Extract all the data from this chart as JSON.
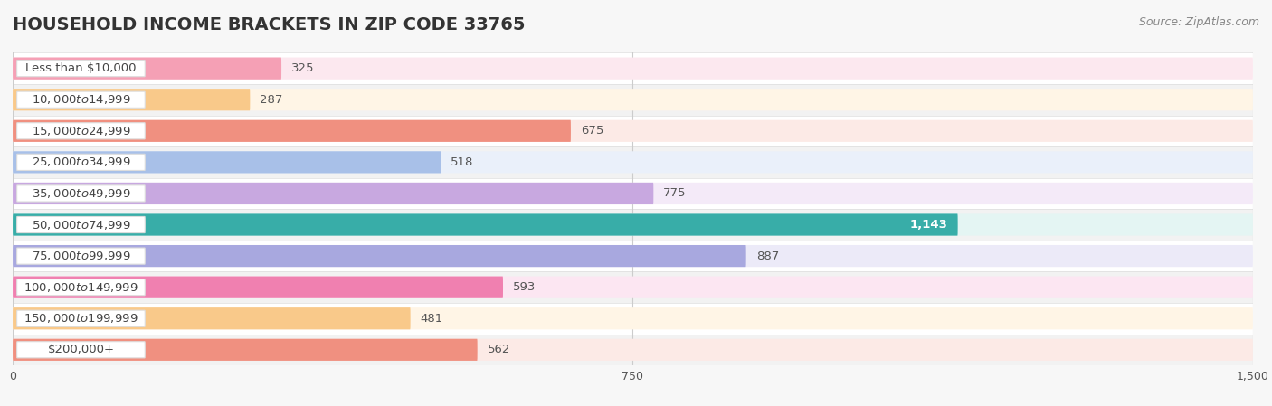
{
  "title": "HOUSEHOLD INCOME BRACKETS IN ZIP CODE 33765",
  "source": "Source: ZipAtlas.com",
  "categories": [
    "Less than $10,000",
    "$10,000 to $14,999",
    "$15,000 to $24,999",
    "$25,000 to $34,999",
    "$35,000 to $49,999",
    "$50,000 to $74,999",
    "$75,000 to $99,999",
    "$100,000 to $149,999",
    "$150,000 to $199,999",
    "$200,000+"
  ],
  "values": [
    325,
    287,
    675,
    518,
    775,
    1143,
    887,
    593,
    481,
    562
  ],
  "bar_colors": [
    "#F5A0B5",
    "#F9C98A",
    "#F09080",
    "#A8C0E8",
    "#C8A8E0",
    "#38ADA8",
    "#A8A8DF",
    "#F080B0",
    "#F9C98A",
    "#F09080"
  ],
  "bar_bg_colors": [
    "#FCE8EF",
    "#FFF5E6",
    "#FCEAE6",
    "#EAF0FA",
    "#F4EAF8",
    "#E4F5F3",
    "#ECEAF8",
    "#FCE6F2",
    "#FFF5E6",
    "#FCEAE6"
  ],
  "value_label_white": [
    false,
    false,
    false,
    false,
    false,
    true,
    false,
    false,
    false,
    false
  ],
  "xlim": [
    0,
    1500
  ],
  "xticks": [
    0,
    750,
    1500
  ],
  "bg_color": "#F7F7F7",
  "row_alt_color": "#EEEEEE",
  "title_fontsize": 14,
  "label_fontsize": 9.5,
  "value_fontsize": 9.5,
  "source_fontsize": 9
}
